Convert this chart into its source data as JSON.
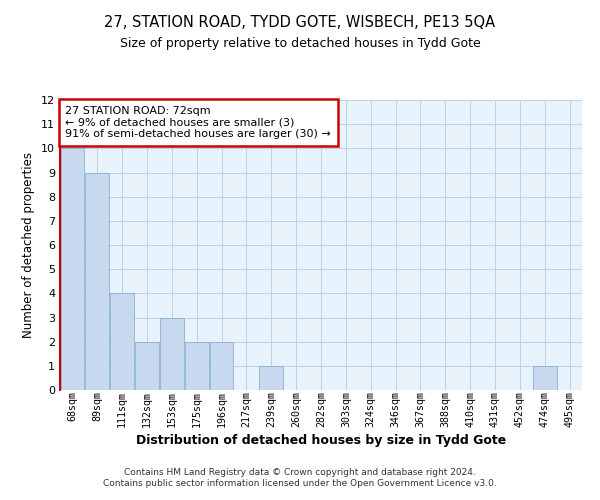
{
  "title": "27, STATION ROAD, TYDD GOTE, WISBECH, PE13 5QA",
  "subtitle": "Size of property relative to detached houses in Tydd Gote",
  "xlabel": "Distribution of detached houses by size in Tydd Gote",
  "ylabel": "Number of detached properties",
  "categories": [
    "68sqm",
    "89sqm",
    "111sqm",
    "132sqm",
    "153sqm",
    "175sqm",
    "196sqm",
    "217sqm",
    "239sqm",
    "260sqm",
    "282sqm",
    "303sqm",
    "324sqm",
    "346sqm",
    "367sqm",
    "388sqm",
    "410sqm",
    "431sqm",
    "452sqm",
    "474sqm",
    "495sqm"
  ],
  "values": [
    10,
    9,
    4,
    2,
    3,
    2,
    2,
    0,
    1,
    0,
    0,
    0,
    0,
    0,
    0,
    0,
    0,
    0,
    0,
    1,
    0
  ],
  "bar_color": "#c8d8ee",
  "bar_edge_color": "#7aa8d0",
  "grid_color": "#c0d0e0",
  "background_color": "#e8f2fb",
  "left_spine_color": "#cc0000",
  "annotation_line1": "27 STATION ROAD: 72sqm",
  "annotation_line2": "← 9% of detached houses are smaller (3)",
  "annotation_line3": "91% of semi-detached houses are larger (30) →",
  "annotation_box_color": "white",
  "annotation_box_edge_color": "#cc0000",
  "ylim": [
    0,
    12
  ],
  "yticks": [
    0,
    1,
    2,
    3,
    4,
    5,
    6,
    7,
    8,
    9,
    10,
    11,
    12
  ],
  "footer_line1": "Contains HM Land Registry data © Crown copyright and database right 2024.",
  "footer_line2": "Contains public sector information licensed under the Open Government Licence v3.0."
}
